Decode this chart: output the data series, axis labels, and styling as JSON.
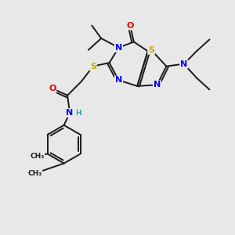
{
  "bg_color": "#e8e8e8",
  "bond_color": "#1a1a1a",
  "atom_colors": {
    "N": "#0000ee",
    "S": "#ccaa00",
    "O": "#ee0000",
    "C": "#1a1a1a",
    "H": "#40a0a0"
  },
  "lw": 1.4,
  "fs": 8.0,
  "fs_small": 6.5
}
